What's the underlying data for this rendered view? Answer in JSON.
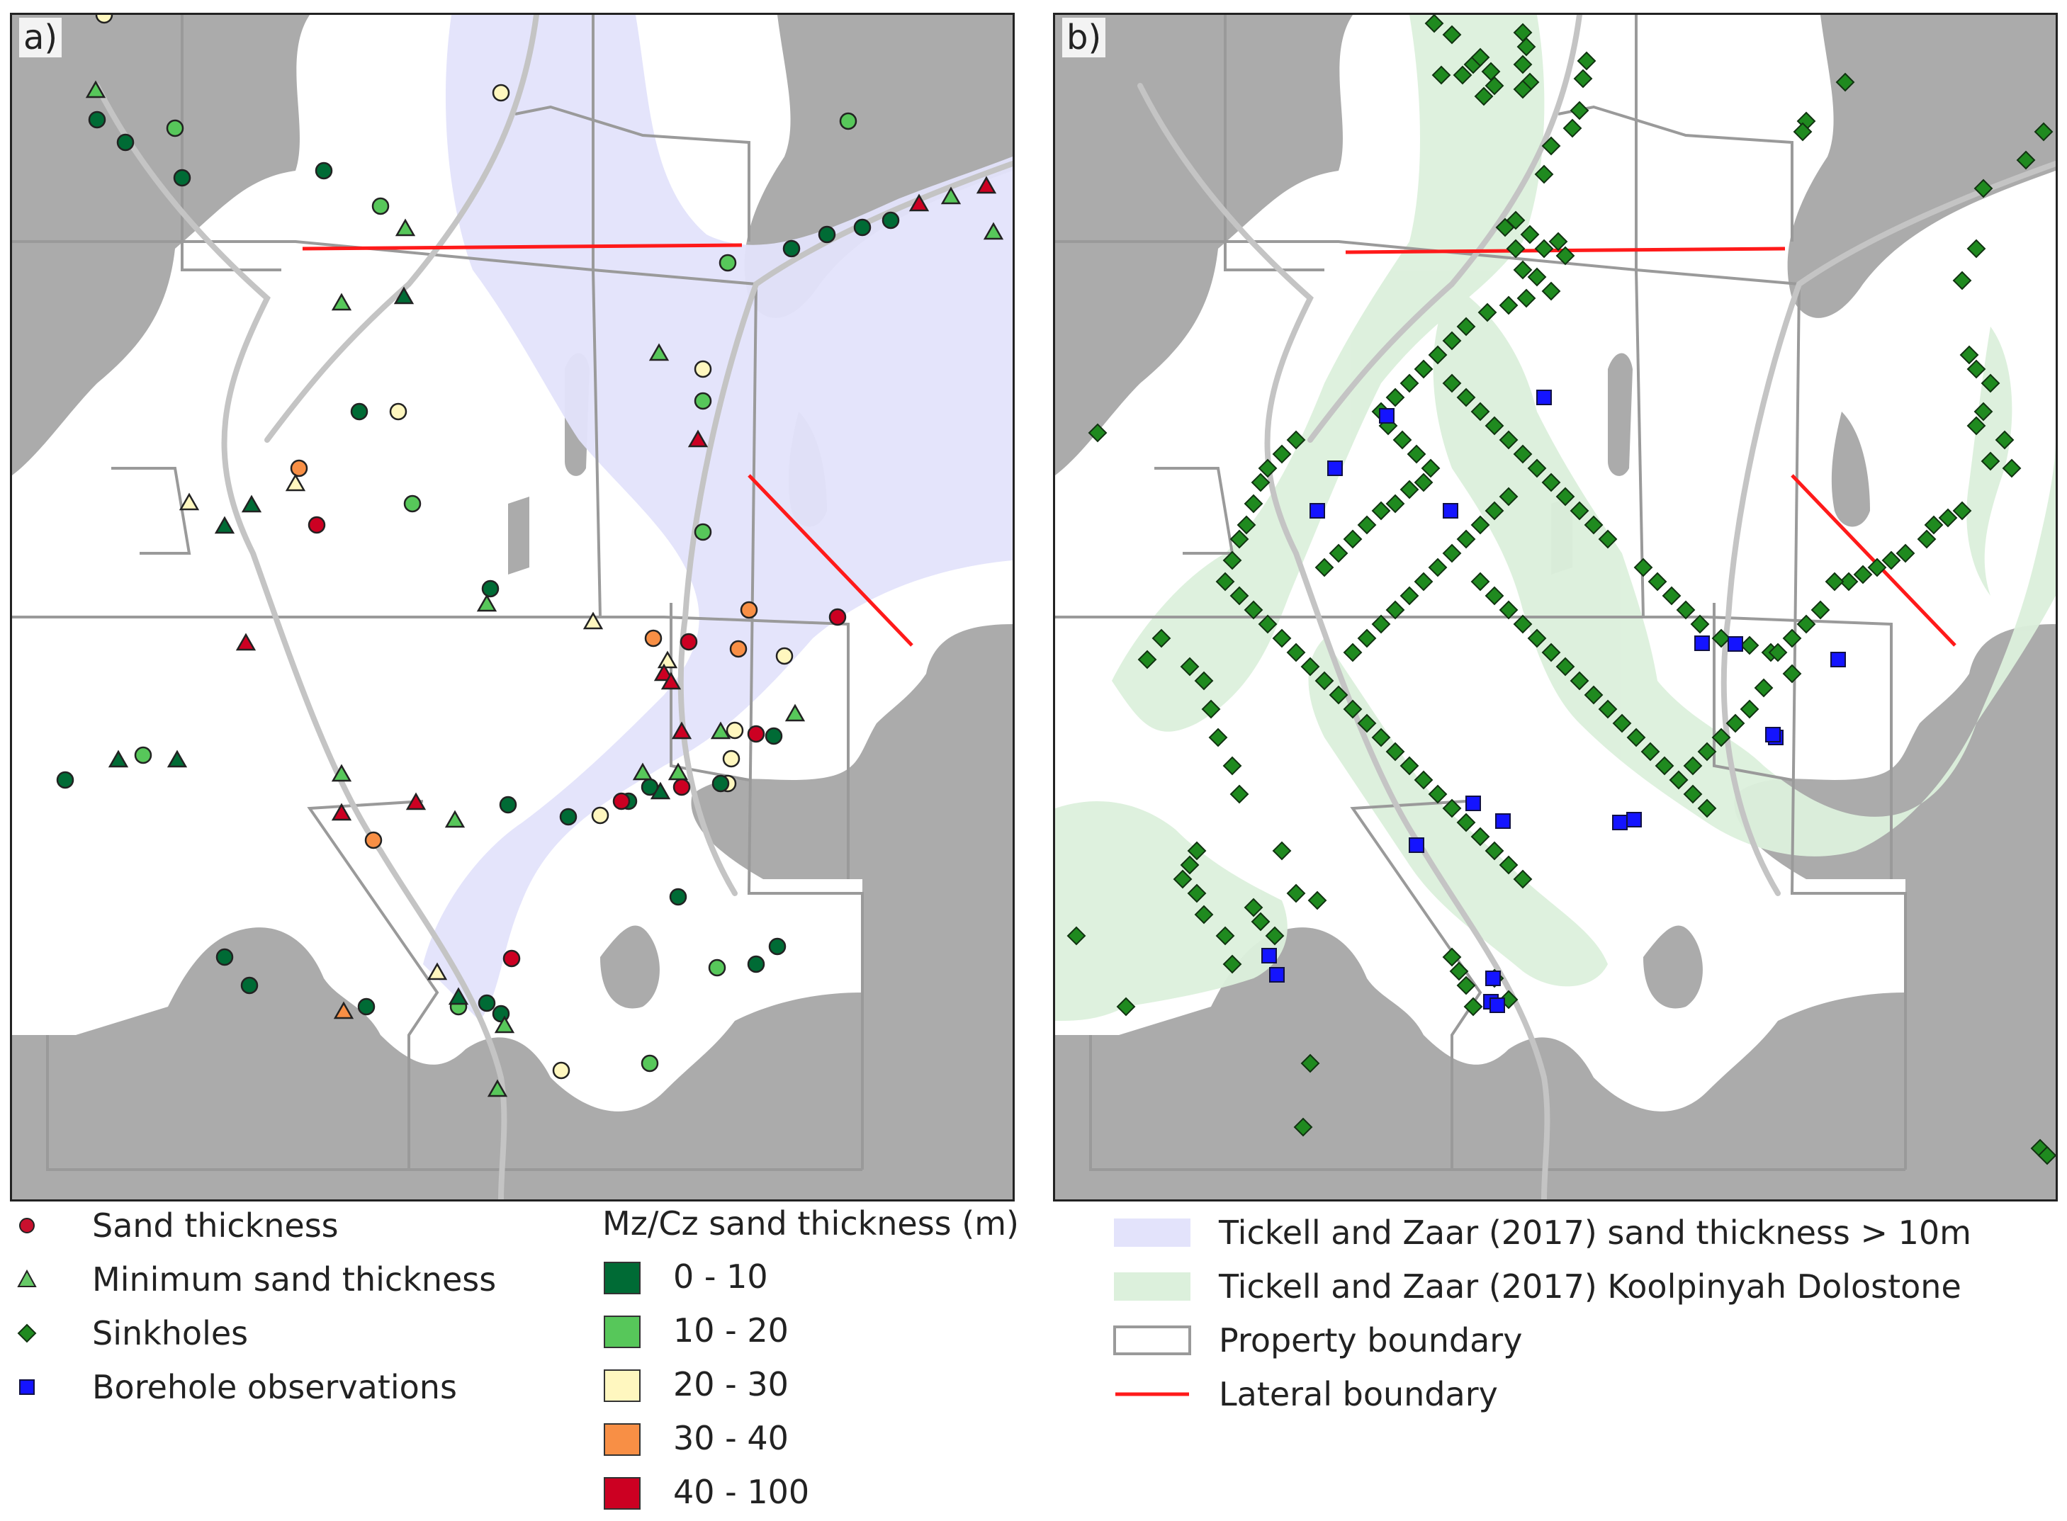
{
  "colors": {
    "land": "#ababab",
    "water": "#ffffff",
    "sand_gt_10m": "#e3e3fb",
    "dolostone": "#dcf0dc",
    "property": "#9a9a9a",
    "lateral": "#ff1a1a",
    "sinkhole": "#1f8a1f",
    "borehole": "#1414ff",
    "sand_point": "#c8102e",
    "min_sand_point": "#66c966"
  },
  "panels": [
    {
      "label": "a)"
    },
    {
      "label": "b)"
    }
  ],
  "legend": {
    "symbols": [
      {
        "label": "Sand thickness",
        "shape": "circle",
        "color": "#c8102e"
      },
      {
        "label": "Minimum sand thickness",
        "shape": "triangle",
        "color": "#66c966"
      },
      {
        "label": "Sinkholes",
        "shape": "diamond",
        "color": "#1f8a1f"
      },
      {
        "label": "Borehole observations",
        "shape": "square",
        "color": "#1414ff"
      }
    ],
    "classes_title": "Mz/Cz sand thickness (m)",
    "classes": [
      {
        "label": "0 - 10",
        "color": "#006b35"
      },
      {
        "label": "10 - 20",
        "color": "#57c75a"
      },
      {
        "label": "20 - 30",
        "color": "#fff7bf"
      },
      {
        "label": "30 - 40",
        "color": "#f88f45"
      },
      {
        "label": "40 - 100",
        "color": "#cc0022"
      }
    ],
    "layers": [
      {
        "label": "Tickell and Zaar (2017) sand thickness > 10m",
        "kind": "fill",
        "color": "#e3e3fb"
      },
      {
        "label": "Tickell and Zaar (2017) Koolpinyah Dolostone",
        "kind": "fill",
        "color": "#dcf0dc"
      },
      {
        "label": "Property boundary",
        "kind": "outline",
        "color": "#9a9a9a"
      },
      {
        "label": "Lateral boundary",
        "kind": "line",
        "color": "#ff1a1a"
      }
    ]
  }
}
